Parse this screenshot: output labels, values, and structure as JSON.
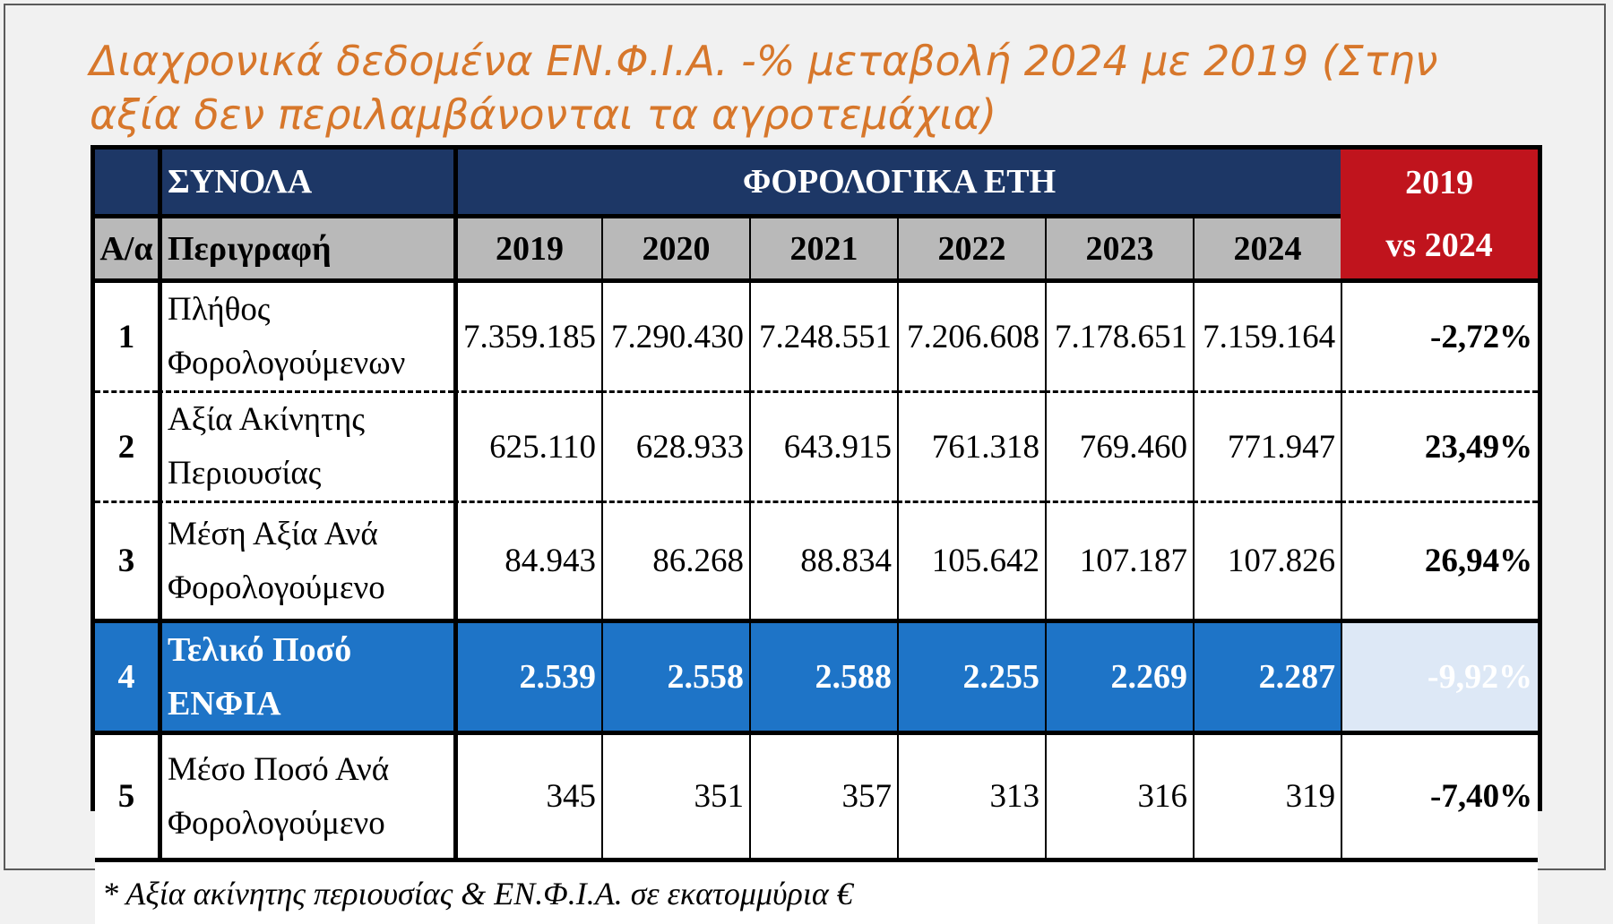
{
  "title_line1": "Διαχρονικά δεδομένα  ΕΝ.Φ.Ι.Α. -% μεταβολή 2024 με 2019 (Στην",
  "title_line2": "αξία δεν περιλαμβάνονται τα αγροτεμάχια)",
  "header": {
    "totals": "ΣΥΝΟΛΑ",
    "tax_years": "ΦΟΡΟΛΟΓΙΚΑ ΕΤΗ",
    "cmp_line1": "2019",
    "cmp_line2": "vs 2024",
    "index": "Α/α",
    "description": "Περιγραφή",
    "years": [
      "2019",
      "2020",
      "2021",
      "2022",
      "2023",
      "2024"
    ]
  },
  "rows": [
    {
      "index": "1",
      "description": "Πλήθος Φορολογούμενων",
      "values": [
        "7.359.185",
        "7.290.430",
        "7.248.551",
        "7.206.608",
        "7.178.651",
        "7.159.164"
      ],
      "change": "-2,72%"
    },
    {
      "index": "2",
      "description": "Αξία Ακίνητης Περιουσίας",
      "values": [
        "625.110",
        "628.933",
        "643.915",
        "761.318",
        "769.460",
        "771.947"
      ],
      "change": "23,49%"
    },
    {
      "index": "3",
      "description": "Μέση Αξία Ανά Φορολογούμενο",
      "values": [
        "84.943",
        "86.268",
        "88.834",
        "105.642",
        "107.187",
        "107.826"
      ],
      "change": "26,94%"
    },
    {
      "index": "4",
      "description": "Τελικό Ποσό ΕΝΦΙΑ",
      "values": [
        "2.539",
        "2.558",
        "2.588",
        "2.255",
        "2.269",
        "2.287"
      ],
      "change": "-9,92%"
    },
    {
      "index": "5",
      "description": "Μέσο Ποσό Ανά Φορολογούμενο",
      "values": [
        "345",
        "351",
        "357",
        "313",
        "316",
        "319"
      ],
      "change": "-7,40%"
    }
  ],
  "footnote": "* Αξία ακίνητης περιουσίας  & ΕΝ.Φ.Ι.Α. σε εκατομμύρια €",
  "colors": {
    "title": "#d7772b",
    "header_navy": "#1d3766",
    "header_grey": "#b9b9b9",
    "header_red": "#c0141d",
    "highlight_blue": "#1e74c7",
    "negative_red": "#c3121d"
  }
}
